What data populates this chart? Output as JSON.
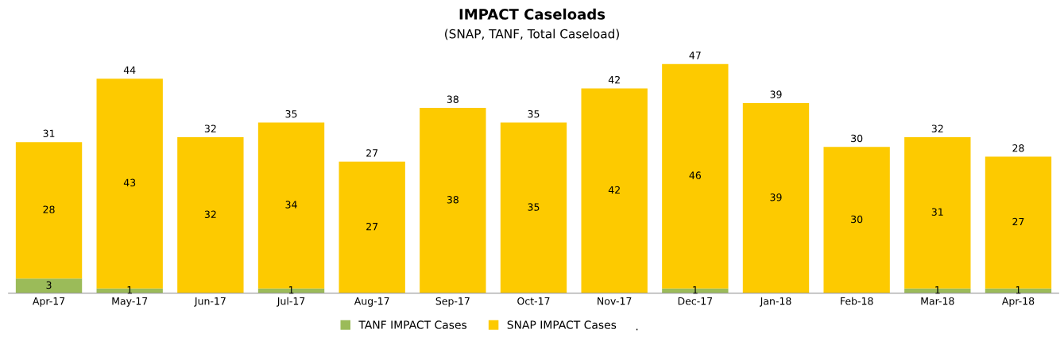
{
  "chart_data": {
    "type": "bar",
    "title": "IMPACT Caseloads",
    "subtitle": "(SNAP, TANF, Total Caseload)",
    "categories": [
      "Apr-17",
      "May-17",
      "Jun-17",
      "Jul-17",
      "Aug-17",
      "Sep-17",
      "Oct-17",
      "Nov-17",
      "Dec-17",
      "Jan-18",
      "Feb-18",
      "Mar-18",
      "Apr-18"
    ],
    "stacked": true,
    "series": [
      {
        "name": "TANF IMPACT Cases",
        "color": "#9bbb59",
        "values": [
          3,
          1,
          null,
          1,
          null,
          null,
          null,
          null,
          1,
          null,
          null,
          1,
          1
        ]
      },
      {
        "name": "SNAP IMPACT Cases",
        "color": "#fdca00",
        "values": [
          28,
          43,
          32,
          34,
          27,
          38,
          35,
          42,
          46,
          39,
          30,
          31,
          27
        ]
      }
    ],
    "totals": [
      "31",
      "44",
      "32",
      "35",
      "27",
      "38",
      "35",
      "42",
      "47",
      "39",
      "30",
      "32",
      "28"
    ],
    "data_labels": true,
    "tick_labels": "x",
    "grid": false,
    "legend": "bottom",
    "annotations": [
      "."
    ]
  }
}
